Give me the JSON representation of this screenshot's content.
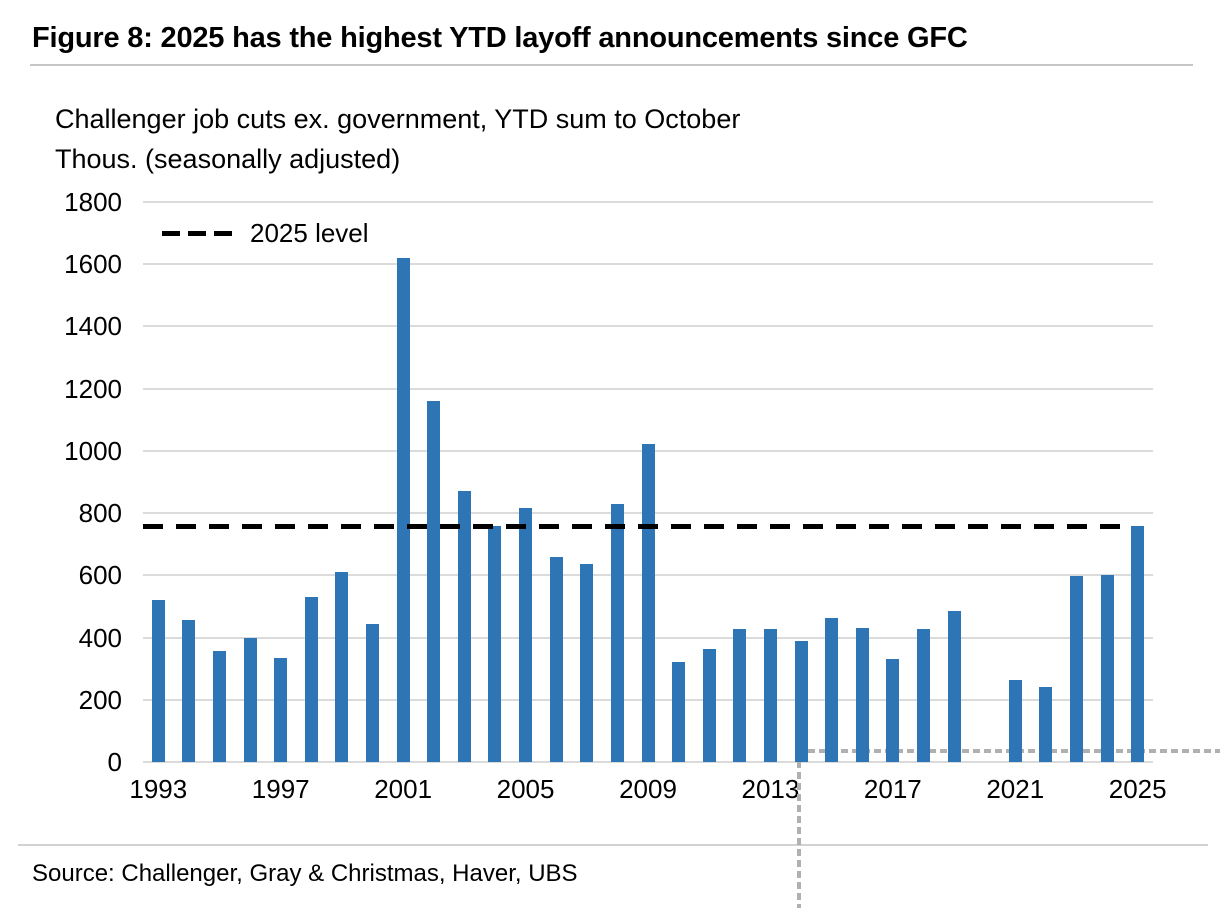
{
  "header": {
    "title": "Figure 8: 2025 has the highest YTD layoff announcements since GFC"
  },
  "subtitle": {
    "line1": "Challenger job cuts ex. government, YTD sum to October",
    "line2": "Thous. (seasonally adjusted)"
  },
  "legend": {
    "dashed_label": "2025 level"
  },
  "footer": {
    "source": "Source: Challenger, Gray & Christmas, Haver, UBS"
  },
  "colors": {
    "bar": "#2E75B6",
    "gridline": "#DBDBDB",
    "reference_line": "#000000",
    "crosshair": "#B0B0B0",
    "separator": "#C6C6C6",
    "text": "#000000"
  },
  "chart_data": {
    "type": "bar",
    "title": "Challenger job cuts ex. government, YTD sum to October",
    "ylabel": "Thous. (seasonally adjusted)",
    "xlabel": "",
    "ylim": [
      0,
      1800
    ],
    "ytick_step": 200,
    "ytick_labels": [
      "0",
      "200",
      "400",
      "600",
      "800",
      "1000",
      "1200",
      "1400",
      "1600",
      "1800"
    ],
    "xtick_labels": [
      "1993",
      "1997",
      "2001",
      "2005",
      "2009",
      "2013",
      "2017",
      "2021",
      "2025"
    ],
    "grid": true,
    "legend_position": "top-left",
    "categories": [
      "1993",
      "1994",
      "1995",
      "1996",
      "1997",
      "1998",
      "1999",
      "2000",
      "2001",
      "2002",
      "2003",
      "2004",
      "2005",
      "2006",
      "2007",
      "2008",
      "2009",
      "2010",
      "2011",
      "2012",
      "2013",
      "2014",
      "2015",
      "2016",
      "2017",
      "2018",
      "2019",
      "2020",
      "2021",
      "2022",
      "2023",
      "2024",
      "2025"
    ],
    "values": [
      520,
      455,
      358,
      400,
      333,
      530,
      612,
      443,
      1620,
      1160,
      870,
      758,
      815,
      660,
      636,
      828,
      1022,
      322,
      363,
      428,
      426,
      388,
      462,
      430,
      330,
      426,
      485,
      null,
      265,
      240,
      598,
      600,
      760
    ],
    "reference_line": {
      "label": "2025 level",
      "value": 760,
      "style": "dashed"
    }
  }
}
